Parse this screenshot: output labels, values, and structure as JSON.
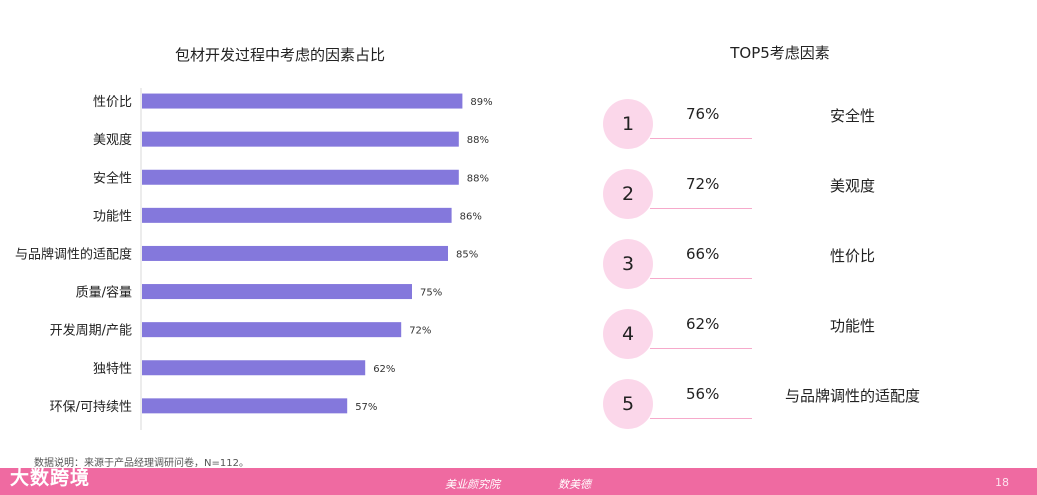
{
  "chart_data": {
    "type": "bar",
    "orientation": "horizontal",
    "title": "包材开发过程中考虑的因素占比",
    "categories": [
      "性价比",
      "美观度",
      "安全性",
      "功能性",
      "与品牌调性的适配度",
      "质量/容量",
      "开发周期/产能",
      "独特性",
      "环保/可持续性"
    ],
    "values": [
      89,
      88,
      88,
      86,
      85,
      75,
      72,
      62,
      57
    ],
    "value_labels": [
      "89%",
      "88%",
      "88%",
      "86%",
      "85%",
      "75%",
      "72%",
      "62%",
      "57%"
    ],
    "xlim": [
      0,
      100
    ],
    "bar_color": "#8478dc",
    "grid": false,
    "legend": "none"
  },
  "top5": {
    "title": "TOP5考虑因素",
    "items": [
      {
        "rank": "1",
        "percent": "76%",
        "factor": "安全性"
      },
      {
        "rank": "2",
        "percent": "72%",
        "factor": "美观度"
      },
      {
        "rank": "3",
        "percent": "66%",
        "factor": "性价比"
      },
      {
        "rank": "4",
        "percent": "62%",
        "factor": "功能性"
      },
      {
        "rank": "5",
        "percent": "56%",
        "factor": "与品牌调性的适配度"
      }
    ],
    "circle_color": "#fbd7ea"
  },
  "footnote": "数据说明：来源于产品经理调研问卷，N=112。",
  "footer": {
    "logo": "大数跨境",
    "mark_1": "美业颜究院",
    "mark_2": "数美德",
    "page_number": "18",
    "bar_color": "#ef6aa1"
  }
}
